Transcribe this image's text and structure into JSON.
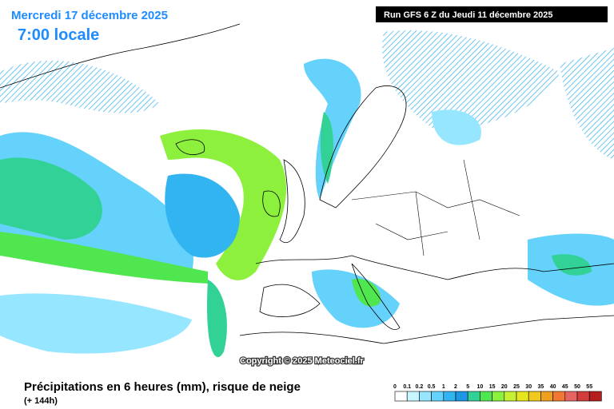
{
  "header": {
    "date": "Mercredi 17 décembre 2025",
    "time": "7:00 locale",
    "run": "Run GFS 6 Z du Jeudi 11 décembre 2025"
  },
  "copyright": "Copyright © 2025 Meteociel.fr",
  "footer": {
    "title": "Précipitations en 6 heures (mm), risque de neige",
    "lead": "(+ 144h)"
  },
  "legend": {
    "items": [
      {
        "label": "0",
        "color": "#ffffff"
      },
      {
        "label": "0.1",
        "color": "#c8f5ff"
      },
      {
        "label": "0.2",
        "color": "#96e6ff"
      },
      {
        "label": "0.5",
        "color": "#64d2fa"
      },
      {
        "label": "1",
        "color": "#32b4f0"
      },
      {
        "label": "2",
        "color": "#1e96e6"
      },
      {
        "label": "5",
        "color": "#32d296"
      },
      {
        "label": "10",
        "color": "#50e650"
      },
      {
        "label": "15",
        "color": "#8cf03c"
      },
      {
        "label": "20",
        "color": "#c8f032"
      },
      {
        "label": "25",
        "color": "#e6e61e"
      },
      {
        "label": "30",
        "color": "#f0c81e"
      },
      {
        "label": "35",
        "color": "#f0a01e"
      },
      {
        "label": "40",
        "color": "#f07832"
      },
      {
        "label": "45",
        "color": "#e66464"
      },
      {
        "label": "50",
        "color": "#d23c3c"
      },
      {
        "label": "55",
        "color": "#b41e1e"
      }
    ]
  }
}
